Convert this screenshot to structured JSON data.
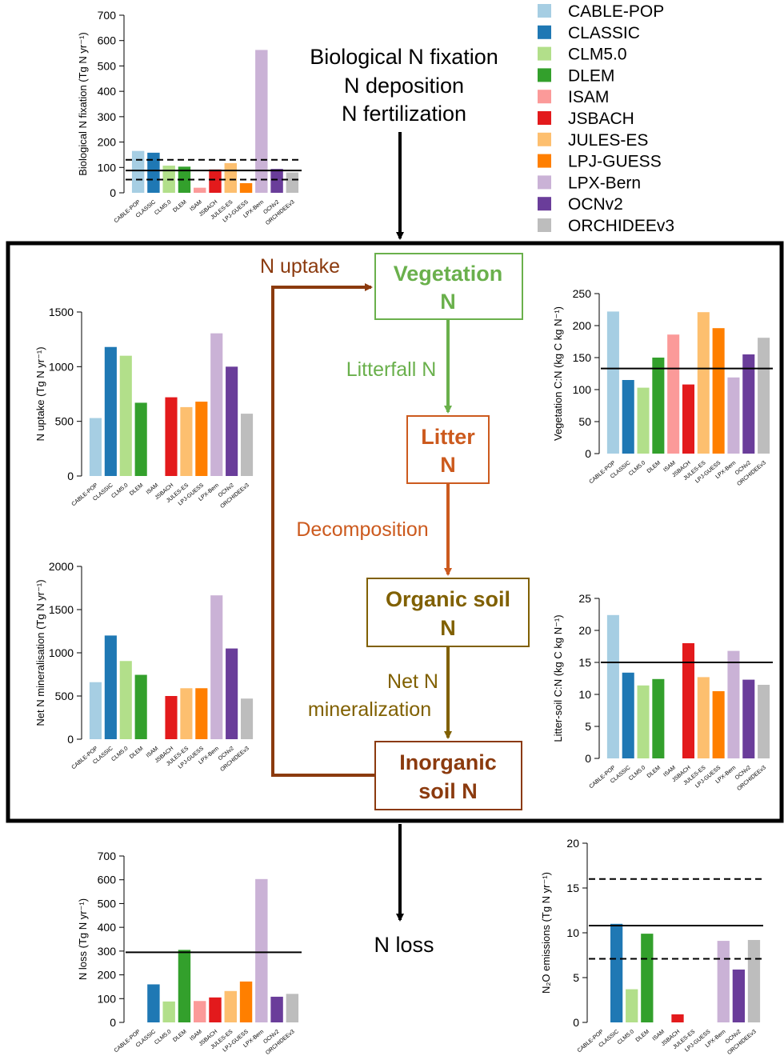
{
  "models": [
    "CABLE-POP",
    "CLASSIC",
    "CLM5.0",
    "DLEM",
    "ISAM",
    "JSBACH",
    "JULES-ES",
    "LPJ-GUESS",
    "LPX-Bern",
    "OCNv2",
    "ORCHIDEEv3"
  ],
  "colors": [
    "#a6cee3",
    "#1f78b4",
    "#b2df8a",
    "#33a02c",
    "#fb9a99",
    "#e31a1c",
    "#fdbf6f",
    "#ff7f00",
    "#cab2d6",
    "#6a3d9a",
    "#bdbdbd"
  ],
  "legend": {
    "items": [
      "CABLE-POP",
      "CLASSIC",
      "CLM5.0",
      "DLEM",
      "ISAM",
      "JSBACH",
      "JULES-ES",
      "LPJ-GUESS",
      "LPX-Bern",
      "OCNv2",
      "ORCHIDEEv3"
    ]
  },
  "diagram": {
    "inputs": [
      "Biological N fixation",
      "N deposition",
      "N fertilization"
    ],
    "uptake_label": "N uptake",
    "vegetation": [
      "Vegetation",
      "N"
    ],
    "litterfall_label": "Litterfall N",
    "litter": [
      "Litter",
      "N"
    ],
    "decomposition_label": "Decomposition",
    "organic_soil": [
      "Organic soil",
      "N"
    ],
    "mineralization_label": [
      "Net N",
      "mineralization"
    ],
    "inorganic_soil": [
      "Inorganic",
      "soil N"
    ],
    "loss_label": "N loss",
    "colors": {
      "vegetation": "#6ab04c",
      "litter": "#cc5a1e",
      "organic": "#806000",
      "inorganic": "#8b3a0e",
      "uptake": "#8b3a0e"
    }
  },
  "chart_data": [
    {
      "type": "bar",
      "id": "bnf",
      "ylabel": "Biological N fixation (Tg N yr⁻¹)",
      "ylim": [
        0,
        700
      ],
      "yticks": [
        0,
        100,
        200,
        300,
        400,
        500,
        600,
        700
      ],
      "categories": [
        "CABLE-POP",
        "CLASSIC",
        "CLM5.0",
        "DLEM",
        "ISAM",
        "JSBACH",
        "JULES-ES",
        "LPJ-GUESS",
        "LPX-Bern",
        "OCNv2",
        "ORCHIDEEv3"
      ],
      "values": [
        165,
        158,
        107,
        103,
        20,
        92,
        117,
        38,
        563,
        94,
        80
      ],
      "reference": [
        {
          "value": 88,
          "style": "solid"
        },
        {
          "value": 130,
          "style": "dashed"
        },
        {
          "value": 52,
          "style": "dashed"
        }
      ]
    },
    {
      "type": "bar",
      "id": "uptake",
      "ylabel": "N uptake (Tg N yr⁻¹)",
      "ylim": [
        0,
        1500
      ],
      "yticks": [
        0,
        500,
        1000,
        1500
      ],
      "categories": [
        "CABLE-POP",
        "CLASSIC",
        "CLM5.0",
        "DLEM",
        "ISAM",
        "JSBACH",
        "JULES-ES",
        "LPJ-GUESS",
        "LPX-Bern",
        "OCNv2",
        "ORCHIDEEv3"
      ],
      "values": [
        530,
        1180,
        1100,
        670,
        null,
        720,
        630,
        680,
        1305,
        1000,
        570
      ],
      "reference": []
    },
    {
      "type": "bar",
      "id": "mineral",
      "ylabel": "Net N mineralisation (Tg N yr⁻¹)",
      "ylim": [
        0,
        2000
      ],
      "yticks": [
        0,
        500,
        1000,
        1500,
        2000
      ],
      "categories": [
        "CABLE-POP",
        "CLASSIC",
        "CLM5.0",
        "DLEM",
        "ISAM",
        "JSBACH",
        "JULES-ES",
        "LPJ-GUESS",
        "LPX-Bern",
        "OCNv2",
        "ORCHIDEEv3"
      ],
      "values": [
        660,
        1200,
        905,
        745,
        null,
        500,
        590,
        590,
        1665,
        1050,
        470
      ],
      "reference": []
    },
    {
      "type": "bar",
      "id": "vegcn",
      "ylabel": "Vegetation C:N (kg C kg N⁻¹)",
      "ylim": [
        0,
        250
      ],
      "yticks": [
        0,
        50,
        100,
        150,
        200,
        250
      ],
      "categories": [
        "CABLE-POP",
        "CLASSIC",
        "CLM5.0",
        "DLEM",
        "ISAM",
        "JSBACH",
        "JULES-ES",
        "LPJ-GUESS",
        "LPX-Bern",
        "OCNv2",
        "ORCHIDEEv3"
      ],
      "values": [
        222,
        115,
        103,
        150,
        186,
        108,
        221,
        196,
        119,
        155,
        181
      ],
      "reference": [
        {
          "value": 133,
          "style": "solid"
        }
      ]
    },
    {
      "type": "bar",
      "id": "soilcn",
      "ylabel": "Litter-soil C:N (kg C kg N⁻¹)",
      "ylim": [
        0,
        25
      ],
      "yticks": [
        0,
        5,
        10,
        15,
        20,
        25
      ],
      "categories": [
        "CABLE-POP",
        "CLASSIC",
        "CLM5.0",
        "DLEM",
        "ISAM",
        "JSBACH",
        "JULES-ES",
        "LPJ-GUESS",
        "LPX-Bern",
        "OCNv2",
        "ORCHIDEEv3"
      ],
      "values": [
        22.4,
        13.4,
        11.4,
        12.4,
        null,
        18.0,
        12.7,
        10.5,
        16.8,
        12.3,
        11.5
      ],
      "reference": [
        {
          "value": 15,
          "style": "solid"
        }
      ]
    },
    {
      "type": "bar",
      "id": "nloss",
      "ylabel": "N loss (Tg N yr⁻¹)",
      "ylim": [
        0,
        700
      ],
      "yticks": [
        0,
        100,
        200,
        300,
        400,
        500,
        600,
        700
      ],
      "categories": [
        "CABLE-POP",
        "CLASSIC",
        "CLM5.0",
        "DLEM",
        "ISAM",
        "JSBACH",
        "JULES-ES",
        "LPJ-GUESS",
        "LPX-Bern",
        "OCNv2",
        "ORCHIDEEv3"
      ],
      "values": [
        null,
        160,
        88,
        305,
        90,
        105,
        132,
        172,
        603,
        108,
        120
      ],
      "reference": [
        {
          "value": 295,
          "style": "solid"
        }
      ]
    },
    {
      "type": "bar",
      "id": "n2o",
      "ylabel": "N₂O emissions (Tg N yr⁻¹)",
      "ylim": [
        0,
        20
      ],
      "yticks": [
        0,
        5,
        10,
        15,
        20
      ],
      "categories": [
        "CABLE-POP",
        "CLASSIC",
        "CLM5.0",
        "DLEM",
        "ISAM",
        "JSBACH",
        "JULES-ES",
        "LPJ-GUESS",
        "LPX-Bern",
        "OCNv2",
        "ORCHIDEEv3"
      ],
      "values": [
        null,
        11.0,
        3.7,
        9.9,
        null,
        0.9,
        null,
        null,
        9.1,
        5.9,
        9.2
      ],
      "reference": [
        {
          "value": 10.8,
          "style": "solid"
        },
        {
          "value": 16.0,
          "style": "dashed"
        },
        {
          "value": 7.1,
          "style": "dashed"
        }
      ]
    }
  ]
}
